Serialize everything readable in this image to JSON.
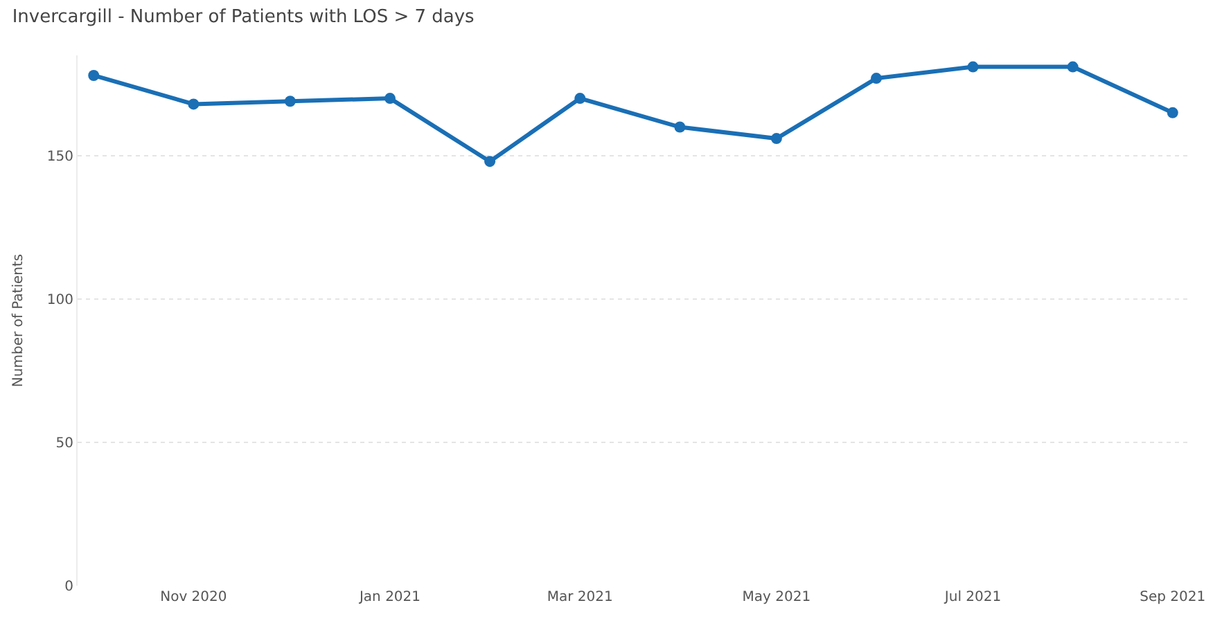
{
  "chart_data": {
    "type": "line",
    "title": "Invercargill - Number of Patients with LOS > 7 days",
    "ylabel": "Number of Patients",
    "x": [
      "2020-10-01",
      "2020-11-01",
      "2020-12-01",
      "2021-01-01",
      "2021-02-01",
      "2021-03-01",
      "2021-04-01",
      "2021-05-01",
      "2021-06-01",
      "2021-07-01",
      "2021-08-01",
      "2021-09-01"
    ],
    "series": [
      {
        "color": "#1a6fb5",
        "values": [
          178,
          168,
          169,
          170,
          148,
          170,
          160,
          156,
          177,
          181,
          181,
          165
        ]
      }
    ],
    "xlim": [
      "2020-09-26",
      "2021-09-06"
    ],
    "xticks": [
      {
        "value": "2020-11-01",
        "label": "Nov 2020"
      },
      {
        "value": "2021-01-01",
        "label": "Jan 2021"
      },
      {
        "value": "2021-03-01",
        "label": "Mar 2021"
      },
      {
        "value": "2021-05-01",
        "label": "May 2021"
      },
      {
        "value": "2021-07-01",
        "label": "Jul 2021"
      },
      {
        "value": "2021-09-01",
        "label": "Sep 2021"
      }
    ],
    "ylim": [
      0,
      185
    ],
    "yticks": [
      0,
      50,
      100,
      150
    ],
    "grid": "y",
    "marker": "circle",
    "line_style": "solid"
  }
}
